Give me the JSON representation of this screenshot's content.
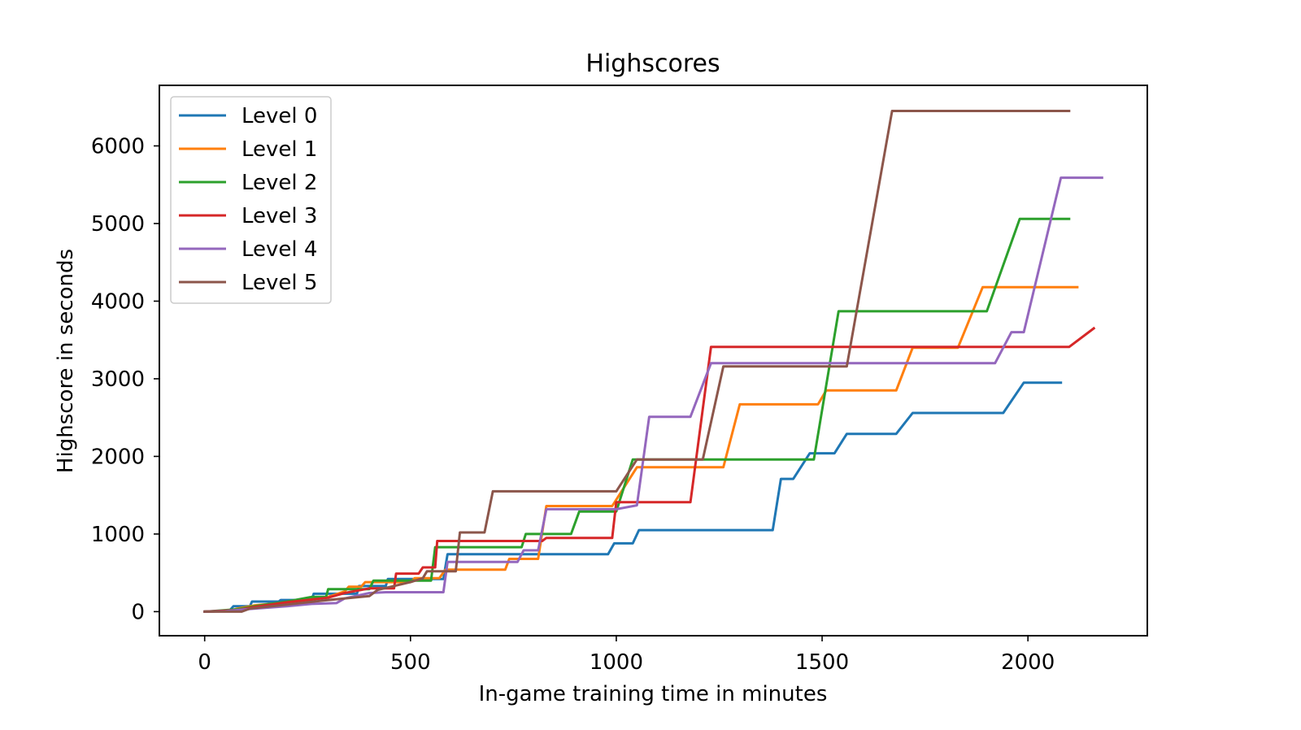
{
  "chart_data": {
    "type": "line",
    "title": "Highscores",
    "xlabel": "In-game training time in minutes",
    "ylabel": "Highscore in seconds",
    "xlim": [
      -110,
      2290
    ],
    "ylim": [
      -310,
      6780
    ],
    "xticks": [
      0,
      500,
      1000,
      1500,
      2000
    ],
    "yticks": [
      0,
      1000,
      2000,
      3000,
      4000,
      5000,
      6000
    ],
    "grid": false,
    "legend_position": "upper left",
    "series": [
      {
        "name": "Level 0",
        "color": "#1f77b4",
        "points": [
          [
            0,
            0
          ],
          [
            60,
            10
          ],
          [
            70,
            70
          ],
          [
            110,
            70
          ],
          [
            115,
            130
          ],
          [
            180,
            130
          ],
          [
            185,
            150
          ],
          [
            260,
            150
          ],
          [
            265,
            230
          ],
          [
            370,
            230
          ],
          [
            375,
            330
          ],
          [
            440,
            330
          ],
          [
            445,
            420
          ],
          [
            580,
            420
          ],
          [
            590,
            740
          ],
          [
            980,
            740
          ],
          [
            995,
            880
          ],
          [
            1040,
            880
          ],
          [
            1055,
            1050
          ],
          [
            1380,
            1050
          ],
          [
            1400,
            1710
          ],
          [
            1430,
            1710
          ],
          [
            1470,
            2040
          ],
          [
            1530,
            2040
          ],
          [
            1560,
            2290
          ],
          [
            1680,
            2290
          ],
          [
            1720,
            2560
          ],
          [
            1940,
            2560
          ],
          [
            1990,
            2950
          ],
          [
            2080,
            2950
          ]
        ]
      },
      {
        "name": "Level 1",
        "color": "#ff7f0e",
        "points": [
          [
            0,
            0
          ],
          [
            60,
            10
          ],
          [
            80,
            40
          ],
          [
            120,
            80
          ],
          [
            200,
            120
          ],
          [
            250,
            150
          ],
          [
            300,
            190
          ],
          [
            340,
            260
          ],
          [
            350,
            320
          ],
          [
            380,
            320
          ],
          [
            390,
            380
          ],
          [
            500,
            380
          ],
          [
            510,
            430
          ],
          [
            570,
            430
          ],
          [
            585,
            540
          ],
          [
            730,
            540
          ],
          [
            740,
            680
          ],
          [
            810,
            680
          ],
          [
            830,
            1360
          ],
          [
            990,
            1360
          ],
          [
            1050,
            1860
          ],
          [
            1260,
            1860
          ],
          [
            1300,
            2670
          ],
          [
            1490,
            2670
          ],
          [
            1510,
            2850
          ],
          [
            1680,
            2850
          ],
          [
            1720,
            3400
          ],
          [
            1830,
            3400
          ],
          [
            1890,
            4180
          ],
          [
            2120,
            4180
          ]
        ]
      },
      {
        "name": "Level 2",
        "color": "#2ca02c",
        "points": [
          [
            0,
            0
          ],
          [
            80,
            30
          ],
          [
            120,
            70
          ],
          [
            200,
            130
          ],
          [
            260,
            190
          ],
          [
            295,
            190
          ],
          [
            300,
            290
          ],
          [
            400,
            290
          ],
          [
            410,
            400
          ],
          [
            550,
            400
          ],
          [
            560,
            830
          ],
          [
            770,
            830
          ],
          [
            780,
            1000
          ],
          [
            890,
            1000
          ],
          [
            910,
            1290
          ],
          [
            1000,
            1290
          ],
          [
            1040,
            1960
          ],
          [
            1480,
            1960
          ],
          [
            1540,
            3870
          ],
          [
            1900,
            3870
          ],
          [
            1980,
            5060
          ],
          [
            2100,
            5060
          ]
        ]
      },
      {
        "name": "Level 3",
        "color": "#d62728",
        "points": [
          [
            0,
            0
          ],
          [
            80,
            20
          ],
          [
            120,
            60
          ],
          [
            200,
            120
          ],
          [
            300,
            180
          ],
          [
            340,
            240
          ],
          [
            400,
            300
          ],
          [
            460,
            300
          ],
          [
            465,
            490
          ],
          [
            520,
            490
          ],
          [
            530,
            570
          ],
          [
            560,
            570
          ],
          [
            565,
            910
          ],
          [
            820,
            910
          ],
          [
            830,
            950
          ],
          [
            990,
            950
          ],
          [
            1000,
            1410
          ],
          [
            1180,
            1410
          ],
          [
            1230,
            3410
          ],
          [
            2100,
            3410
          ],
          [
            2160,
            3650
          ]
        ]
      },
      {
        "name": "Level 4",
        "color": "#9467bd",
        "points": [
          [
            0,
            0
          ],
          [
            50,
            5
          ],
          [
            100,
            30
          ],
          [
            200,
            70
          ],
          [
            260,
            100
          ],
          [
            320,
            110
          ],
          [
            340,
            170
          ],
          [
            400,
            240
          ],
          [
            440,
            250
          ],
          [
            580,
            250
          ],
          [
            590,
            640
          ],
          [
            760,
            640
          ],
          [
            775,
            790
          ],
          [
            810,
            790
          ],
          [
            830,
            1320
          ],
          [
            1000,
            1320
          ],
          [
            1050,
            1370
          ],
          [
            1080,
            2510
          ],
          [
            1180,
            2510
          ],
          [
            1230,
            3200
          ],
          [
            1920,
            3200
          ],
          [
            1960,
            3600
          ],
          [
            1990,
            3600
          ],
          [
            2080,
            5590
          ],
          [
            2180,
            5590
          ]
        ]
      },
      {
        "name": "Level 5",
        "color": "#8c564b",
        "points": [
          [
            0,
            0
          ],
          [
            90,
            0
          ],
          [
            110,
            40
          ],
          [
            200,
            90
          ],
          [
            300,
            150
          ],
          [
            400,
            200
          ],
          [
            420,
            280
          ],
          [
            500,
            380
          ],
          [
            530,
            430
          ],
          [
            540,
            520
          ],
          [
            610,
            520
          ],
          [
            620,
            1020
          ],
          [
            680,
            1020
          ],
          [
            700,
            1550
          ],
          [
            1000,
            1550
          ],
          [
            1050,
            1960
          ],
          [
            1210,
            1960
          ],
          [
            1260,
            3160
          ],
          [
            1560,
            3160
          ],
          [
            1670,
            6450
          ],
          [
            2100,
            6450
          ]
        ]
      }
    ]
  }
}
